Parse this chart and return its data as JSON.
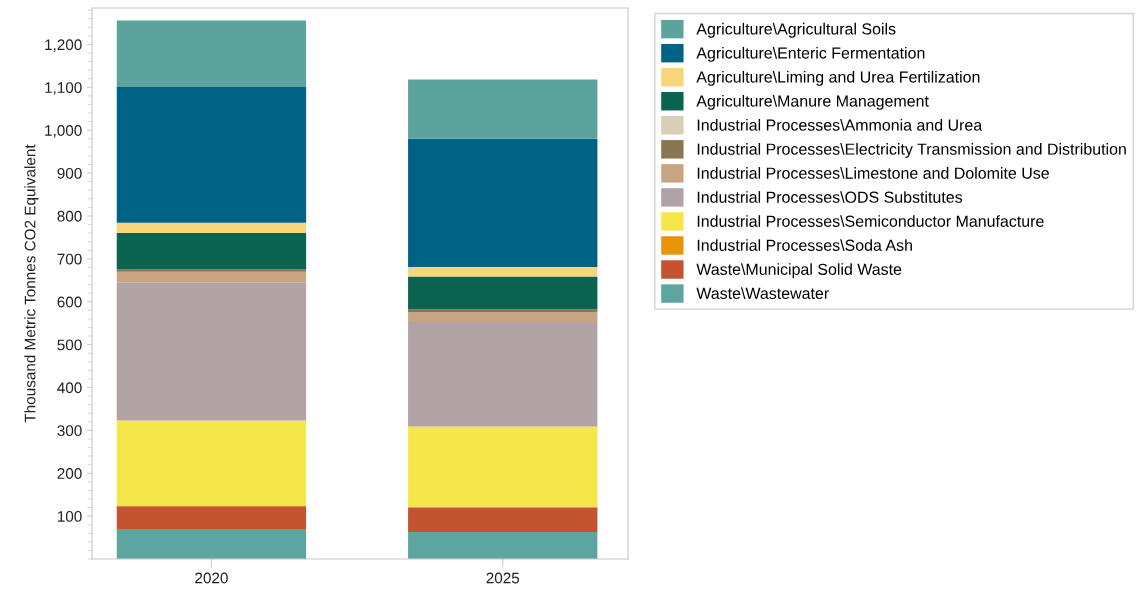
{
  "chart_data": {
    "type": "bar",
    "stacked": true,
    "ylabel": "Thousand Metric Tonnes CO2 Equivalent",
    "categories": [
      "2020",
      "2025"
    ],
    "ylim": [
      0,
      1285
    ],
    "yticks": [
      {
        "value": 100,
        "label": "100"
      },
      {
        "value": 200,
        "label": "200"
      },
      {
        "value": 300,
        "label": "300"
      },
      {
        "value": 400,
        "label": "400"
      },
      {
        "value": 500,
        "label": "500"
      },
      {
        "value": 600,
        "label": "600"
      },
      {
        "value": 700,
        "label": "700"
      },
      {
        "value": 800,
        "label": "800"
      },
      {
        "value": 900,
        "label": "900"
      },
      {
        "value": 1000,
        "label": "1,000"
      },
      {
        "value": 1100,
        "label": "1,100"
      },
      {
        "value": 1200,
        "label": "1,200"
      }
    ],
    "grid": false,
    "legend": "right",
    "series": [
      {
        "name": "Waste\\Wastewater",
        "color": "#5da5a0",
        "values": [
          68,
          63
        ]
      },
      {
        "name": "Waste\\Municipal Solid Waste",
        "color": "#c4532f",
        "values": [
          55,
          57
        ]
      },
      {
        "name": "Industrial Processes\\Soda Ash",
        "color": "#e8950a",
        "values": [
          2,
          2
        ]
      },
      {
        "name": "Industrial Processes\\Semiconductor Manufacture",
        "color": "#f5e74a",
        "values": [
          198,
          187
        ]
      },
      {
        "name": "Industrial Processes\\ODS Substitutes",
        "color": "#b1a2a6",
        "values": [
          321,
          244
        ]
      },
      {
        "name": "Industrial Processes\\Limestone and Dolomite Use",
        "color": "#c8a482",
        "values": [
          26,
          23
        ]
      },
      {
        "name": "Industrial Processes\\Electricity Transmission and Distribution",
        "color": "#8a7652",
        "values": [
          5,
          6
        ]
      },
      {
        "name": "Industrial Processes\\Ammonia and Urea",
        "color": "#d9ceb6",
        "values": [
          null,
          null
        ]
      },
      {
        "name": "Agriculture\\Manure Management",
        "color": "#0a6450",
        "values": [
          85,
          77
        ]
      },
      {
        "name": "Agriculture\\Liming and Urea Fertilization",
        "color": "#f7d57a",
        "values": [
          24,
          22
        ]
      },
      {
        "name": "Agriculture\\Enteric Fermentation",
        "color": "#006385",
        "values": [
          317,
          299
        ]
      },
      {
        "name": "Agriculture\\Agricultural Soils",
        "color": "#5ba39c",
        "values": [
          155,
          138
        ]
      }
    ]
  }
}
